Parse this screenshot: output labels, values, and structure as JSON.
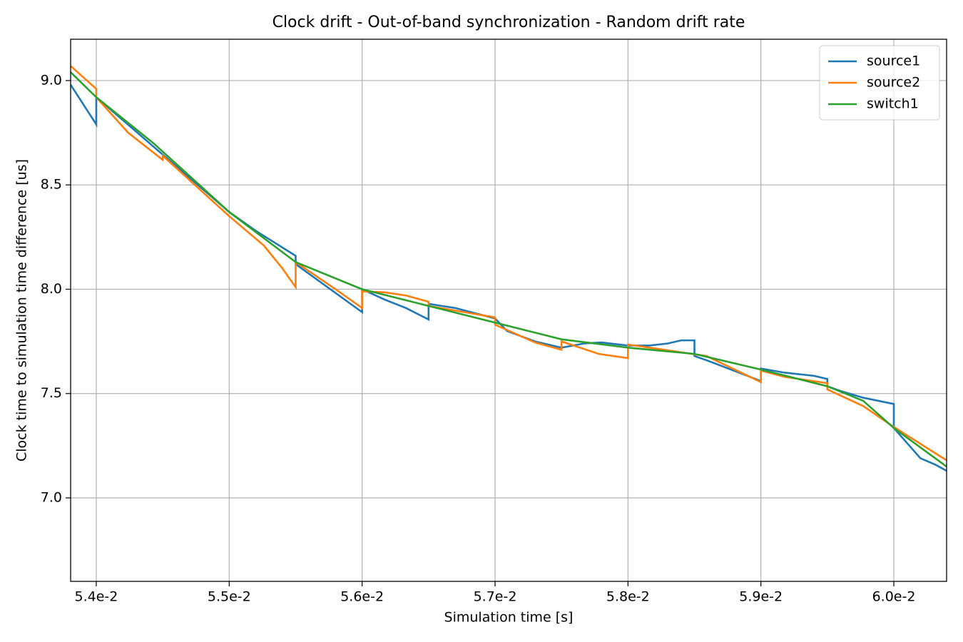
{
  "chart_data": {
    "type": "line",
    "title": "Clock drift - Out-of-band synchronization - Random drift rate",
    "xlabel": "Simulation time [s]",
    "ylabel": "Clock time to simulation time difference [us]",
    "xlim": [
      0.053807,
      0.060397
    ],
    "ylim": [
      6.6,
      9.198
    ],
    "xticks": [
      {
        "value": 0.054,
        "label": "5.4e-2"
      },
      {
        "value": 0.055,
        "label": "5.5e-2"
      },
      {
        "value": 0.056,
        "label": "5.6e-2"
      },
      {
        "value": 0.057,
        "label": "5.7e-2"
      },
      {
        "value": 0.058,
        "label": "5.8e-2"
      },
      {
        "value": 0.059,
        "label": "5.9e-2"
      },
      {
        "value": 0.06,
        "label": "6.0e-2"
      }
    ],
    "yticks": [
      {
        "value": 7.0,
        "label": "7.0"
      },
      {
        "value": 7.5,
        "label": "7.5"
      },
      {
        "value": 8.0,
        "label": "8.0"
      },
      {
        "value": 8.5,
        "label": "8.5"
      },
      {
        "value": 9.0,
        "label": "9.0"
      }
    ],
    "grid": true,
    "legend": "upper right",
    "series": [
      {
        "name": "source1",
        "color": "#1f77b4",
        "x": [
          0.053807,
          0.054,
          0.054,
          0.055,
          0.0552,
          0.0555,
          0.0555,
          0.056,
          0.056,
          0.05617,
          0.05633,
          0.0565,
          0.0565,
          0.0566,
          0.0567,
          0.057,
          0.05709,
          0.0573,
          0.0575,
          0.05767,
          0.0578,
          0.058,
          0.05816,
          0.0583,
          0.0584,
          0.0585,
          0.0585,
          0.05859,
          0.059,
          0.059,
          0.05918,
          0.0594,
          0.0595,
          0.0595,
          0.05961,
          0.05977,
          0.06,
          0.06,
          0.0602,
          0.06031,
          0.060397
        ],
        "values": [
          8.98,
          8.79,
          8.92,
          8.37,
          8.28,
          8.16,
          8.12,
          7.89,
          8.0,
          7.95,
          7.91,
          7.855,
          7.93,
          7.92,
          7.91,
          7.86,
          7.8,
          7.75,
          7.72,
          7.74,
          7.745,
          7.73,
          7.73,
          7.74,
          7.755,
          7.755,
          7.68,
          7.66,
          7.56,
          7.62,
          7.6,
          7.585,
          7.57,
          7.535,
          7.51,
          7.48,
          7.45,
          7.335,
          7.19,
          7.16,
          7.13
        ]
      },
      {
        "name": "source2",
        "color": "#ff7f0e",
        "x": [
          0.053807,
          0.054,
          0.054,
          0.05424,
          0.0545,
          0.0545,
          0.055,
          0.05526,
          0.0554,
          0.0555,
          0.0555,
          0.0558,
          0.056,
          0.056,
          0.05617,
          0.05633,
          0.0565,
          0.0565,
          0.057,
          0.057,
          0.0573,
          0.0575,
          0.0575,
          0.05778,
          0.058,
          0.058,
          0.05827,
          0.05859,
          0.059,
          0.059,
          0.05918,
          0.0595,
          0.0595,
          0.05977,
          0.06,
          0.06031,
          0.060397
        ],
        "values": [
          9.07,
          8.96,
          8.92,
          8.75,
          8.62,
          8.64,
          8.35,
          8.21,
          8.1,
          8.01,
          8.13,
          8.0,
          7.91,
          7.99,
          7.985,
          7.97,
          7.94,
          7.92,
          7.865,
          7.83,
          7.745,
          7.71,
          7.75,
          7.69,
          7.67,
          7.735,
          7.71,
          7.68,
          7.555,
          7.61,
          7.58,
          7.55,
          7.52,
          7.44,
          7.34,
          7.215,
          7.18
        ]
      },
      {
        "name": "switch1",
        "color": "#2ca02c",
        "x": [
          0.053807,
          0.054,
          0.05443,
          0.055,
          0.0555,
          0.056,
          0.0565,
          0.057,
          0.0575,
          0.058,
          0.0585,
          0.059,
          0.0595,
          0.05977,
          0.06,
          0.060397
        ],
        "values": [
          9.04,
          8.92,
          8.7,
          8.37,
          8.13,
          8.0,
          7.92,
          7.84,
          7.76,
          7.72,
          7.69,
          7.615,
          7.535,
          7.465,
          7.335,
          7.15
        ]
      }
    ]
  }
}
